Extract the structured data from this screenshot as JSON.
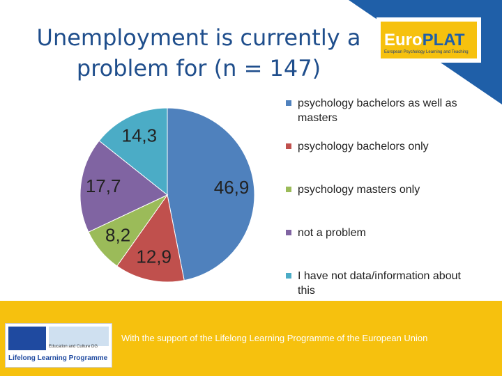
{
  "chart_data": {
    "type": "pie",
    "title": "Unemployment is currently a problem for (n = 147)",
    "categories": [
      "psychology bachelors as well as masters",
      "psychology bachelors only",
      "psychology masters only",
      "not a problem",
      "I have not data/information about this"
    ],
    "values": [
      46.9,
      12.9,
      8.2,
      17.7,
      14.3
    ],
    "value_labels": [
      "46,9",
      "12,9",
      "8,2",
      "17,7",
      "14,3"
    ],
    "colors": [
      "#4f81bd",
      "#c0504d",
      "#9bbb59",
      "#8064a2",
      "#4bacc6"
    ],
    "legend": "right"
  },
  "logo": {
    "part1": "Euro",
    "part2": "PLAT",
    "subtitle": "European Psychology Learning and Teaching"
  },
  "footer": {
    "text": "With the support of the Lifelong Learning Programme of the European Union",
    "dg": "Education and Culture DG",
    "programme": "Lifelong Learning Programme"
  }
}
